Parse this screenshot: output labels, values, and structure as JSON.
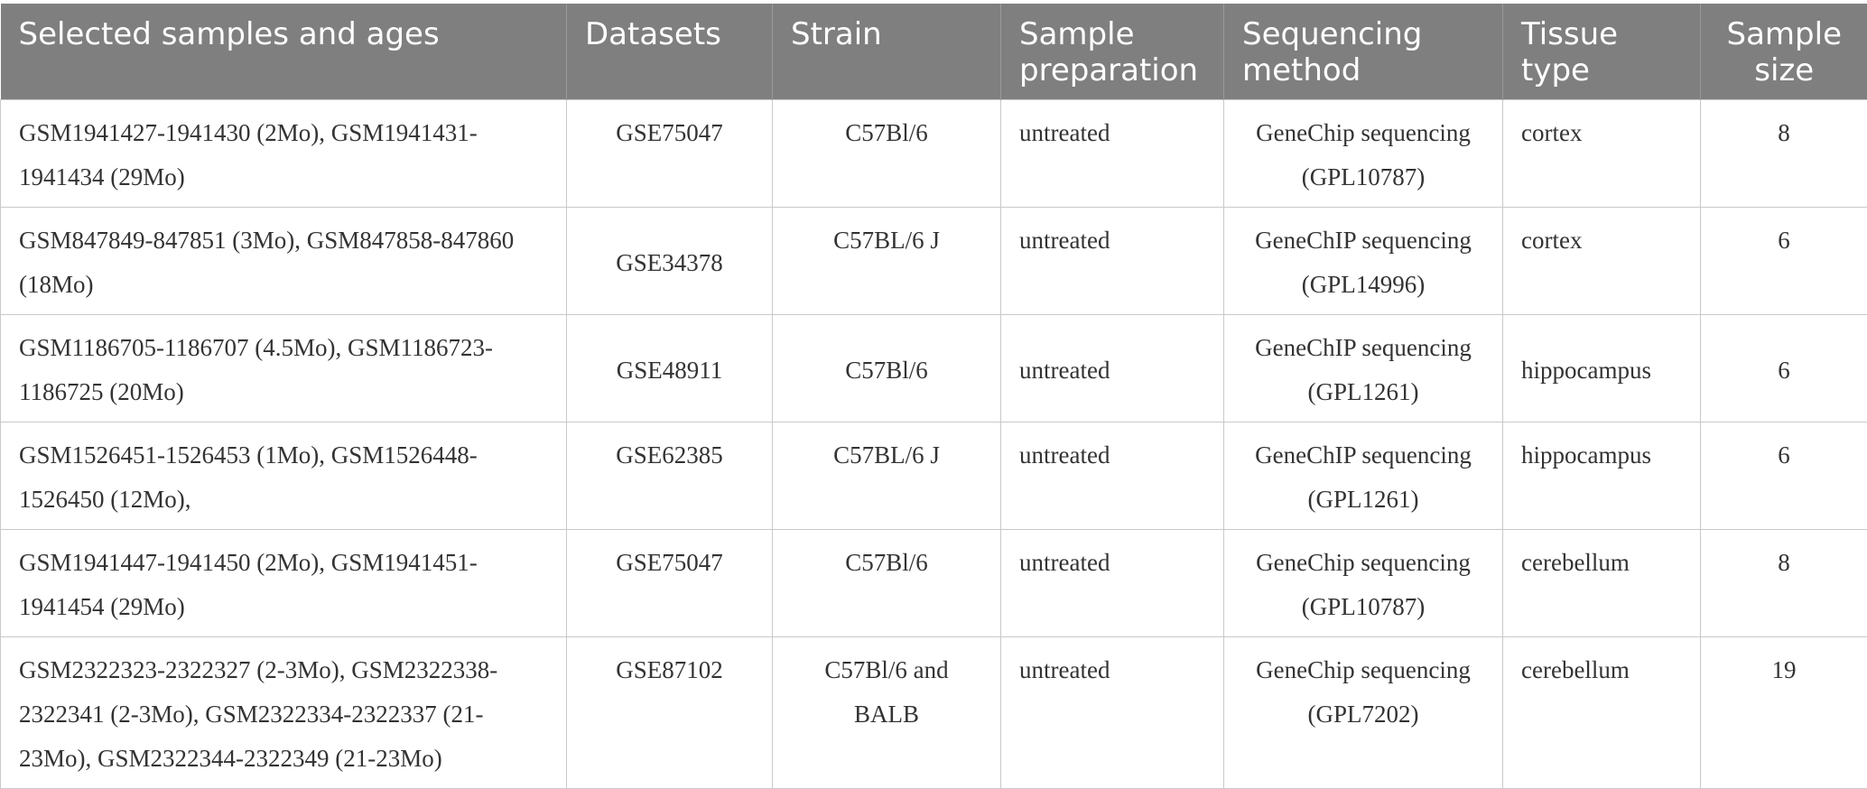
{
  "table": {
    "headers": [
      "Selected samples and ages",
      "Datasets",
      "Strain",
      "Sample preparation",
      "Sequencing method",
      "Tissue type",
      "Sample size"
    ],
    "rows": [
      {
        "samples": "GSM1941427-1941430 (2Mo), GSM1941431-1941434 (29Mo)",
        "dataset": "GSE75047",
        "strain": "C57Bl/6",
        "preparation": "untreated",
        "method": "GeneChip sequencing (GPL10787)",
        "tissue": "cortex",
        "size": "8"
      },
      {
        "samples": "GSM847849-847851 (3Mo), GSM847858-847860 (18Mo)",
        "dataset": "GSE34378",
        "strain": "C57BL/6 J",
        "preparation": "untreated",
        "method": "GeneChIP sequencing (GPL14996)",
        "tissue": "cortex",
        "size": "6"
      },
      {
        "samples": "GSM1186705-1186707 (4.5Mo), GSM1186723-1186725 (20Mo)",
        "dataset": "GSE48911",
        "strain": "C57Bl/6",
        "preparation": "untreated",
        "method": "GeneChIP sequencing (GPL1261)",
        "tissue": "hippocampus",
        "size": "6"
      },
      {
        "samples": "GSM1526451-1526453 (1Mo), GSM1526448-1526450 (12Mo),",
        "dataset": "GSE62385",
        "strain": "C57BL/6 J",
        "preparation": "untreated",
        "method": "GeneChIP sequencing (GPL1261)",
        "tissue": "hippocampus",
        "size": "6"
      },
      {
        "samples": "GSM1941447-1941450 (2Mo), GSM1941451-1941454 (29Mo)",
        "dataset": "GSE75047",
        "strain": "C57Bl/6",
        "preparation": "untreated",
        "method": "GeneChip sequencing (GPL10787)",
        "tissue": "cerebellum",
        "size": "8"
      },
      {
        "samples": "GSM2322323-2322327 (2-3Mo), GSM2322338-2322341 (2-3Mo), GSM2322334-2322337 (21-23Mo), GSM2322344-2322349 (21-23Mo)",
        "dataset": "GSE87102",
        "strain": "C57Bl/6 and BALB",
        "preparation": "untreated",
        "method": "GeneChip sequencing (GPL7202)",
        "tissue": "cerebellum",
        "size": "19"
      }
    ]
  }
}
